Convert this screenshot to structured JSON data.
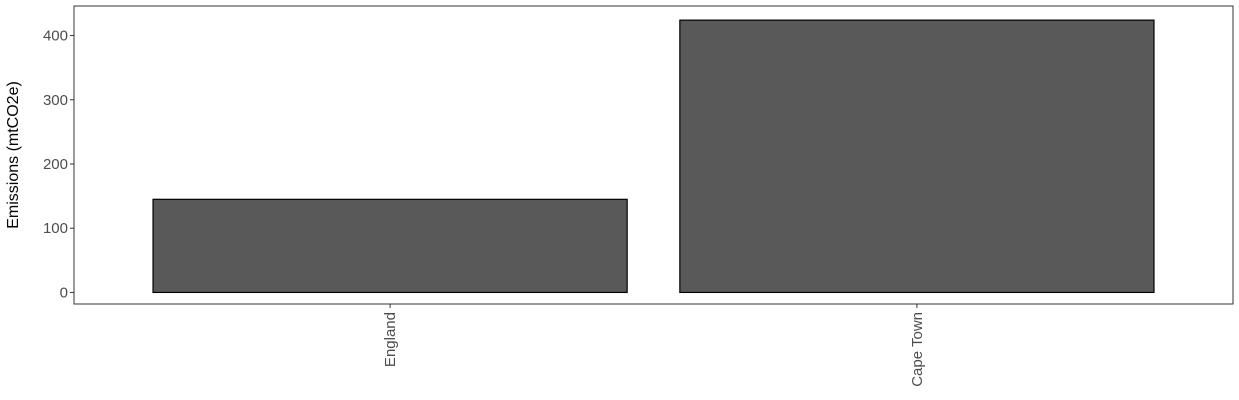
{
  "chart_data": {
    "type": "bar",
    "categories": [
      "England",
      "Cape Town"
    ],
    "values": [
      145,
      424
    ],
    "title": "",
    "xlabel": "",
    "ylabel": "Emissions (mtCO2e)",
    "ylim": [
      -18,
      446
    ],
    "yticks": [
      0,
      100,
      200,
      300,
      400
    ],
    "grid": false,
    "x_tick_rotation": "vertical",
    "colors": {
      "bar_fill": "#595959",
      "bar_stroke": "#000000",
      "panel_border": "#333333",
      "tick_text": "#4d4d4d"
    }
  }
}
